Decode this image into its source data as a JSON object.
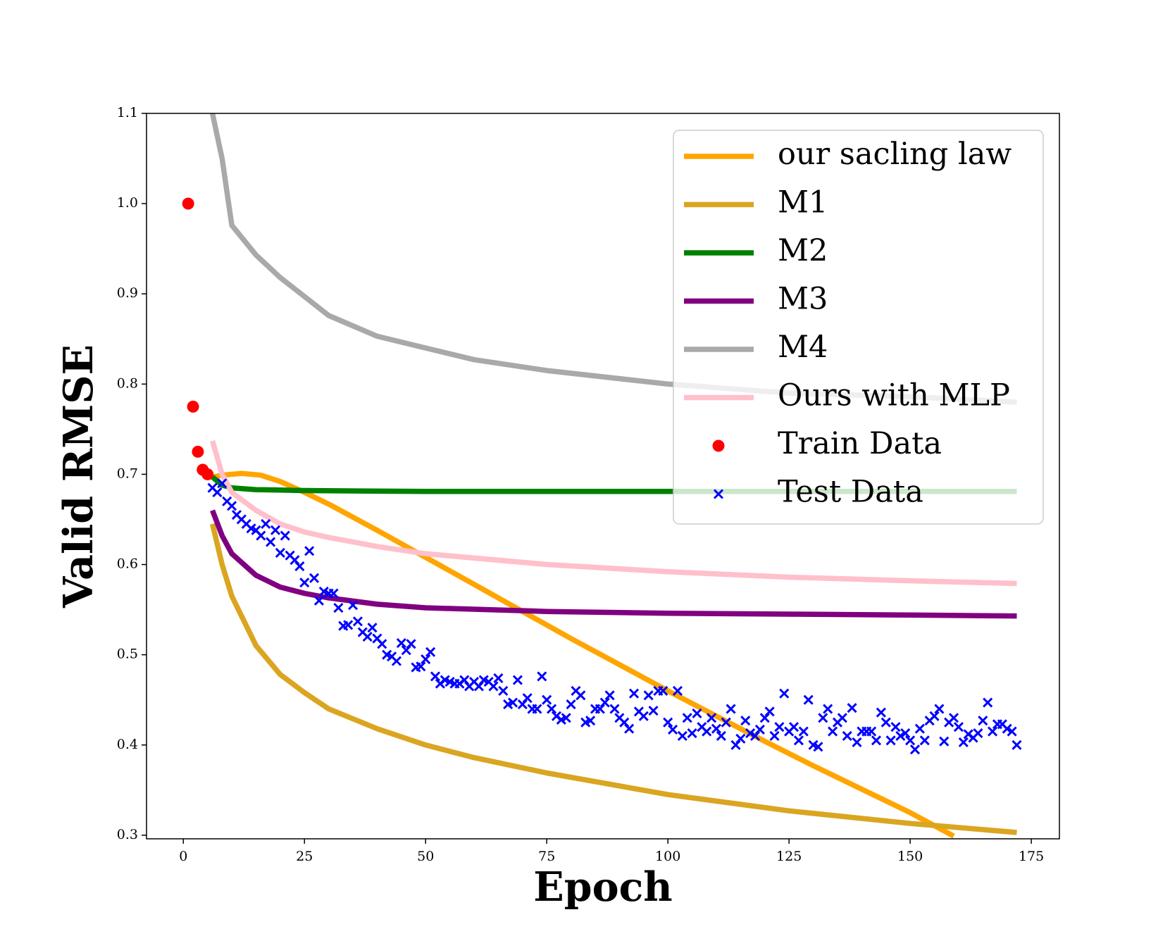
{
  "chart_data": {
    "type": "line",
    "xlabel": "Epoch",
    "ylabel": "Valid RMSE",
    "xlim": [
      -7.6,
      180.8
    ],
    "ylim": [
      0.296,
      1.1
    ],
    "xticks": [
      0,
      25,
      50,
      75,
      100,
      125,
      150,
      175
    ],
    "yticks": [
      0.3,
      0.4,
      0.5,
      0.6,
      0.7,
      0.8,
      0.9,
      {
        "value": 1,
        "label": "1.0"
      },
      1.1
    ],
    "legend": "upper right",
    "series": [
      {
        "name": "our sacling law",
        "color": "#ffa500",
        "style": "line",
        "x": [
          6,
          8,
          12,
          16,
          20,
          25,
          30,
          40,
          50,
          60,
          70,
          80,
          90,
          100,
          110,
          120,
          130,
          140,
          150,
          159
        ],
        "values": [
          0.697,
          0.699,
          0.701,
          0.699,
          0.692,
          0.68,
          0.667,
          0.638,
          0.608,
          0.578,
          0.548,
          0.518,
          0.489,
          0.46,
          0.432,
          0.404,
          0.377,
          0.351,
          0.325,
          0.299
        ]
      },
      {
        "name": "M1",
        "color": "#daa520",
        "style": "line",
        "x": [
          6,
          8,
          10,
          15,
          20,
          25,
          30,
          40,
          50,
          60,
          75,
          100,
          125,
          150,
          172
        ],
        "values": [
          0.645,
          0.6,
          0.565,
          0.51,
          0.478,
          0.458,
          0.44,
          0.418,
          0.4,
          0.386,
          0.369,
          0.345,
          0.327,
          0.313,
          0.303
        ]
      },
      {
        "name": "M2",
        "color": "#008000",
        "style": "line",
        "x": [
          6,
          8,
          10,
          15,
          25,
          50,
          172
        ],
        "values": [
          0.697,
          0.688,
          0.685,
          0.683,
          0.682,
          0.681,
          0.681
        ]
      },
      {
        "name": "M3",
        "color": "#800080",
        "style": "line",
        "x": [
          6,
          8,
          10,
          15,
          20,
          25,
          30,
          40,
          50,
          75,
          100,
          125,
          150,
          172
        ],
        "values": [
          0.66,
          0.632,
          0.612,
          0.588,
          0.575,
          0.568,
          0.563,
          0.556,
          0.552,
          0.548,
          0.546,
          0.545,
          0.544,
          0.543
        ]
      },
      {
        "name": "M4",
        "color": "#a9a9a9",
        "style": "line",
        "x": [
          6,
          7,
          8,
          10,
          15,
          20,
          25,
          30,
          40,
          50,
          60,
          75,
          100,
          125,
          150,
          172
        ],
        "values": [
          1.1,
          1.075,
          1.05,
          0.976,
          0.943,
          0.918,
          0.897,
          0.876,
          0.853,
          0.84,
          0.827,
          0.815,
          0.8,
          0.79,
          0.786,
          0.78
        ]
      },
      {
        "name": "Ours with MLP",
        "color": "#ffc0cb",
        "style": "line",
        "x": [
          6,
          8,
          10,
          15,
          20,
          25,
          30,
          40,
          50,
          75,
          100,
          125,
          150,
          172
        ],
        "values": [
          0.737,
          0.7,
          0.68,
          0.66,
          0.645,
          0.636,
          0.63,
          0.62,
          0.612,
          0.6,
          0.592,
          0.586,
          0.582,
          0.579
        ]
      },
      {
        "name": "Train Data",
        "color": "#ff0000",
        "style": "dot",
        "x": [
          1,
          2,
          3,
          4,
          5
        ],
        "values": [
          1.0,
          0.775,
          0.725,
          0.705,
          0.7
        ]
      },
      {
        "name": "Test Data",
        "color": "#0000ff",
        "style": "cross",
        "x": [
          6,
          7,
          8,
          9,
          10,
          11,
          12,
          13,
          14,
          15,
          16,
          17,
          18,
          19,
          20,
          21,
          22,
          23,
          24,
          25,
          26,
          27,
          28,
          29,
          30,
          31,
          32,
          33,
          34,
          35,
          36,
          37,
          38,
          39,
          40,
          41,
          42,
          43,
          44,
          45,
          46,
          47,
          48,
          49,
          50,
          51,
          52,
          53,
          54,
          55,
          56,
          57,
          58,
          59,
          60,
          61,
          62,
          63,
          64,
          65,
          66,
          67,
          68,
          69,
          70,
          71,
          72,
          73,
          74,
          75,
          76,
          77,
          78,
          79,
          80,
          81,
          82,
          83,
          84,
          85,
          86,
          87,
          88,
          89,
          90,
          91,
          92,
          93,
          94,
          95,
          96,
          97,
          98,
          99,
          100,
          101,
          102,
          103,
          104,
          105,
          106,
          107,
          108,
          109,
          110,
          111,
          112,
          113,
          114,
          115,
          116,
          117,
          118,
          119,
          120,
          121,
          122,
          123,
          124,
          125,
          126,
          127,
          128,
          129,
          130,
          131,
          132,
          133,
          134,
          135,
          136,
          137,
          138,
          139,
          140,
          141,
          142,
          143,
          144,
          145,
          146,
          147,
          148,
          149,
          150,
          151,
          152,
          153,
          154,
          155,
          156,
          157,
          158,
          159,
          160,
          161,
          162,
          163,
          164,
          165,
          166,
          167,
          168,
          169,
          170,
          171,
          172
        ],
        "values": [
          0.685,
          0.68,
          0.69,
          0.67,
          0.665,
          0.655,
          0.65,
          0.645,
          0.64,
          0.638,
          0.632,
          0.645,
          0.625,
          0.638,
          0.613,
          0.632,
          0.61,
          0.605,
          0.598,
          0.58,
          0.615,
          0.585,
          0.56,
          0.57,
          0.568,
          0.568,
          0.552,
          0.532,
          0.533,
          0.555,
          0.537,
          0.525,
          0.52,
          0.53,
          0.518,
          0.512,
          0.5,
          0.498,
          0.493,
          0.513,
          0.505,
          0.512,
          0.486,
          0.487,
          0.495,
          0.503,
          0.476,
          0.468,
          0.472,
          0.47,
          0.468,
          0.468,
          0.472,
          0.465,
          0.47,
          0.465,
          0.472,
          0.47,
          0.465,
          0.474,
          0.46,
          0.445,
          0.447,
          0.472,
          0.445,
          0.452,
          0.44,
          0.44,
          0.476,
          0.45,
          0.44,
          0.432,
          0.428,
          0.43,
          0.445,
          0.46,
          0.455,
          0.425,
          0.427,
          0.44,
          0.44,
          0.447,
          0.455,
          0.44,
          0.43,
          0.425,
          0.418,
          0.457,
          0.437,
          0.432,
          0.455,
          0.438,
          0.46,
          0.46,
          0.425,
          0.417,
          0.46,
          0.41,
          0.43,
          0.413,
          0.435,
          0.42,
          0.415,
          0.43,
          0.418,
          0.41,
          0.425,
          0.44,
          0.4,
          0.407,
          0.427,
          0.413,
          0.41,
          0.417,
          0.43,
          0.437,
          0.41,
          0.42,
          0.457,
          0.415,
          0.42,
          0.405,
          0.415,
          0.45,
          0.4,
          0.398,
          0.43,
          0.44,
          0.415,
          0.425,
          0.43,
          0.41,
          0.441,
          0.403,
          0.415,
          0.415,
          0.415,
          0.405,
          0.436,
          0.425,
          0.405,
          0.42,
          0.41,
          0.413,
          0.405,
          0.395,
          0.418,
          0.405,
          0.427,
          0.432,
          0.44,
          0.404,
          0.425,
          0.43,
          0.42,
          0.403,
          0.412,
          0.408,
          0.413,
          0.427,
          0.447,
          0.415,
          0.423,
          0.423,
          0.418,
          0.415,
          0.4
        ]
      }
    ]
  }
}
